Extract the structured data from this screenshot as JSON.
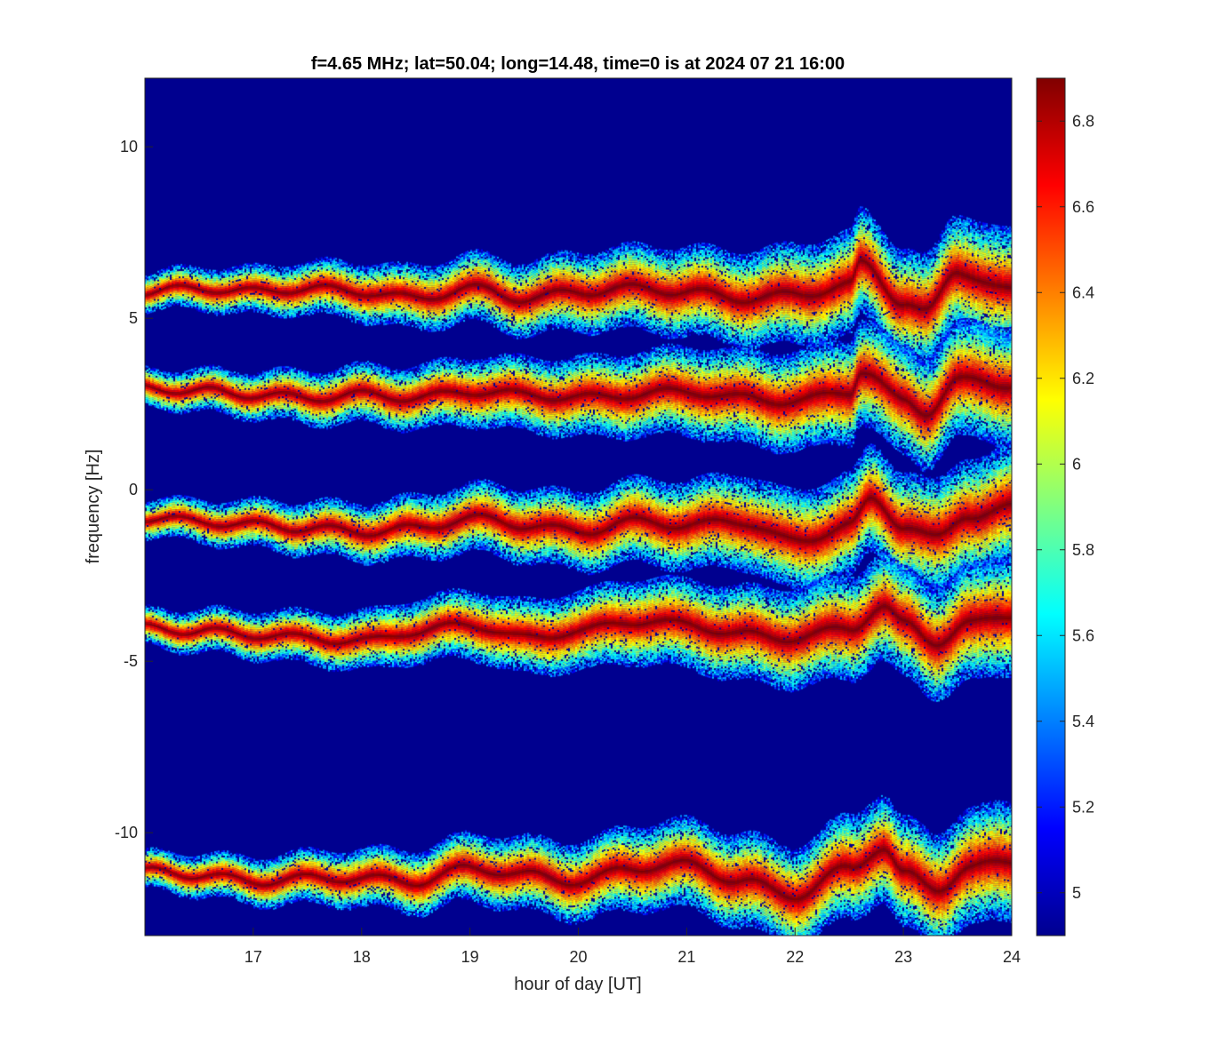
{
  "chart_data": {
    "type": "heatmap",
    "title": "f=4.65 MHz;  lat=50.04; long=14.48, time=0 is at 2024 07 21 16:00",
    "xlabel": "hour of day [UT]",
    "ylabel": "frequency [Hz]",
    "xlim": [
      16.0,
      24.0
    ],
    "ylim": [
      -13.0,
      12.0
    ],
    "xticks": [
      17,
      18,
      19,
      20,
      21,
      22,
      23,
      24
    ],
    "yticks": [
      10,
      5,
      0,
      -5,
      -10
    ],
    "colormap": "jet",
    "clim": [
      4.9,
      6.9
    ],
    "colorbar_ticks": [
      6.8,
      6.6,
      6.4,
      6.2,
      6,
      5.8,
      5.6,
      5.4,
      5.2,
      5
    ],
    "background_color": "#00008f",
    "grid": false,
    "traces": [
      {
        "x": [
          16.0,
          16.5,
          17.0,
          17.5,
          18.0,
          18.5,
          19.0,
          19.5,
          20.0,
          20.5,
          21.0,
          21.5,
          22.0,
          22.5,
          22.6,
          23.0,
          23.2,
          23.5,
          24.0
        ],
        "y": [
          5.8,
          5.9,
          5.8,
          5.9,
          5.8,
          5.6,
          5.9,
          5.6,
          5.8,
          5.9,
          5.8,
          5.6,
          5.7,
          6.0,
          6.6,
          5.5,
          5.2,
          6.4,
          5.8
        ]
      },
      {
        "x": [
          16.0,
          16.5,
          17.0,
          17.5,
          18.0,
          18.5,
          19.0,
          19.5,
          20.0,
          20.5,
          21.0,
          21.5,
          22.0,
          22.5,
          22.6,
          23.0,
          23.2,
          23.5,
          24.0
        ],
        "y": [
          3.0,
          2.9,
          2.8,
          2.7,
          2.8,
          2.7,
          2.9,
          2.8,
          2.7,
          2.8,
          2.9,
          2.7,
          2.6,
          2.9,
          3.5,
          2.6,
          2.3,
          3.2,
          3.1
        ]
      },
      {
        "x": [
          16.0,
          16.5,
          17.0,
          17.5,
          18.0,
          18.5,
          19.0,
          19.5,
          20.0,
          20.5,
          21.0,
          21.5,
          22.0,
          22.5,
          22.7,
          23.0,
          23.3,
          23.6,
          24.0
        ],
        "y": [
          -0.8,
          -0.9,
          -1.0,
          -1.1,
          -1.2,
          -1.1,
          -0.8,
          -1.0,
          -1.2,
          -0.9,
          -1.0,
          -0.9,
          -1.5,
          -1.0,
          -0.3,
          -1.0,
          -1.4,
          -0.7,
          -0.5
        ]
      },
      {
        "x": [
          16.0,
          16.5,
          17.0,
          17.5,
          18.0,
          18.5,
          19.0,
          19.5,
          20.0,
          20.5,
          21.0,
          21.5,
          22.0,
          22.5,
          22.8,
          23.0,
          23.3,
          23.6,
          24.0
        ],
        "y": [
          -4.0,
          -4.1,
          -4.2,
          -4.3,
          -4.4,
          -4.1,
          -3.9,
          -4.3,
          -4.1,
          -3.8,
          -3.9,
          -4.2,
          -4.3,
          -4.0,
          -3.4,
          -3.9,
          -4.4,
          -3.9,
          -3.6
        ]
      },
      {
        "x": [
          16.0,
          16.5,
          17.0,
          17.5,
          18.0,
          18.5,
          19.0,
          19.5,
          20.0,
          20.5,
          21.0,
          21.5,
          22.0,
          22.5,
          22.8,
          23.0,
          23.3,
          23.6,
          24.0
        ],
        "y": [
          -11.1,
          -11.2,
          -11.4,
          -11.3,
          -11.3,
          -11.4,
          -11.0,
          -11.2,
          -11.4,
          -11.0,
          -10.9,
          -11.4,
          -11.8,
          -11.0,
          -10.4,
          -11.2,
          -11.6,
          -11.0,
          -10.8
        ]
      }
    ]
  }
}
